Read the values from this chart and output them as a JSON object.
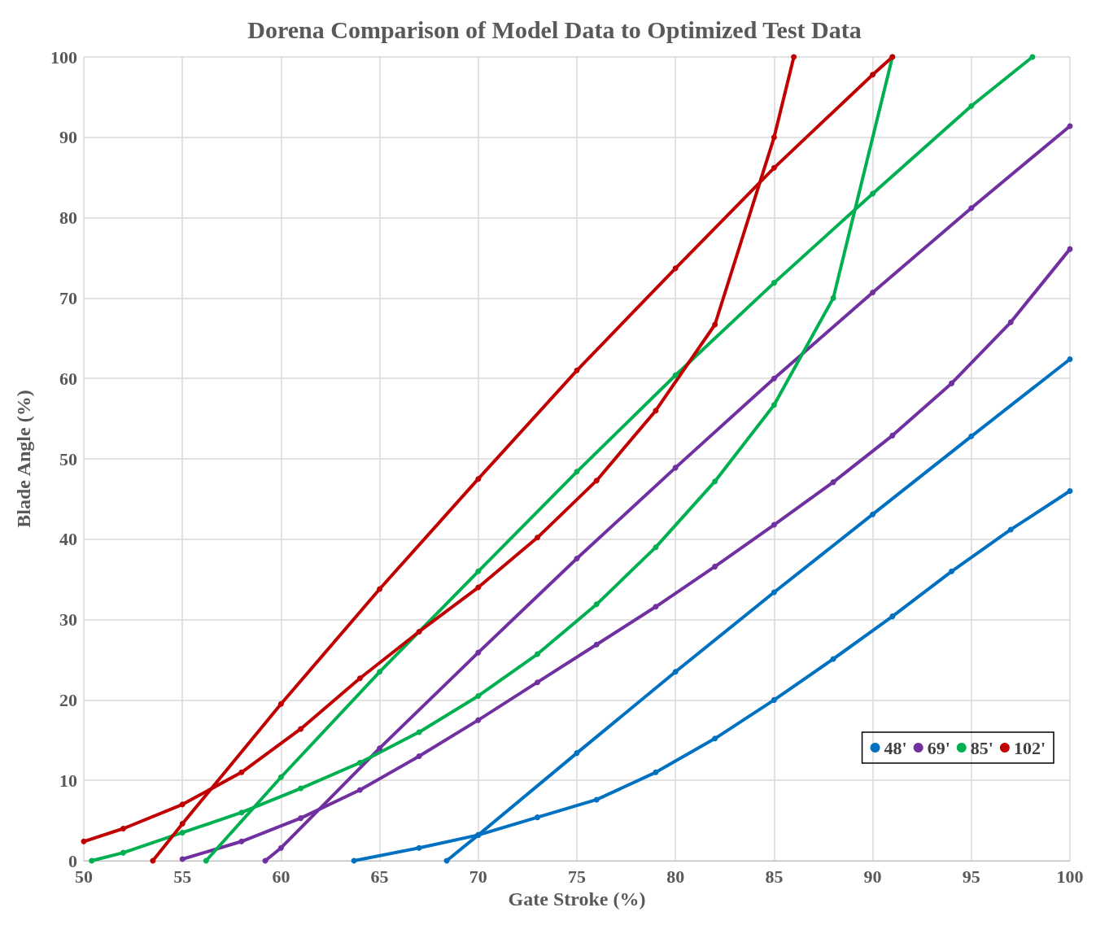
{
  "chart_data": {
    "type": "line",
    "title": "Dorena Comparison of Model Data to Optimized Test Data",
    "xlabel": "Gate Stroke (%)",
    "ylabel": "Blade Angle (%)",
    "xlim": [
      50,
      100
    ],
    "xticks": [
      50,
      55,
      60,
      65,
      70,
      75,
      80,
      85,
      90,
      95,
      100
    ],
    "ylim": [
      0,
      100
    ],
    "yticks": [
      0,
      10,
      20,
      30,
      40,
      50,
      60,
      70,
      80,
      90,
      100
    ],
    "grid": true,
    "legend": "bottom right",
    "marker": "circle",
    "line_style": "solid",
    "series": [
      {
        "name": "48'",
        "color": "#0070c0",
        "x": [
          63.7,
          67,
          70,
          73,
          76,
          79,
          82,
          85,
          88,
          91,
          94,
          97,
          100
        ],
        "values": [
          0,
          1.6,
          3.2,
          5.4,
          7.6,
          11,
          15.2,
          20,
          25.1,
          30.4,
          36,
          41.2,
          46
        ]
      },
      {
        "color": "#0070c0",
        "x": [
          68.4,
          70,
          75,
          80,
          85,
          90,
          95,
          100
        ],
        "values": [
          0,
          3.2,
          13.4,
          23.5,
          33.4,
          43.1,
          52.8,
          62.4
        ]
      },
      {
        "name": "69'",
        "color": "#7030a0",
        "x": [
          55,
          58,
          61,
          64,
          67,
          70,
          73,
          76,
          79,
          82,
          85,
          88,
          91,
          94,
          97,
          100
        ],
        "values": [
          0.2,
          2.4,
          5.3,
          8.8,
          13,
          17.5,
          22.2,
          26.9,
          31.6,
          36.6,
          41.8,
          47.1,
          52.9,
          59.4,
          67,
          76.1
        ]
      },
      {
        "color": "#7030a0",
        "x": [
          59.2,
          60,
          65,
          70,
          75,
          80,
          85,
          90,
          95,
          100
        ],
        "values": [
          0,
          1.6,
          14,
          25.9,
          37.6,
          48.9,
          60,
          70.7,
          81.2,
          91.4
        ]
      },
      {
        "name": "85'",
        "color": "#00b050",
        "x": [
          50.4,
          52,
          55,
          58,
          61,
          64,
          67,
          70,
          73,
          76,
          79,
          82,
          85,
          88,
          91
        ],
        "values": [
          0,
          1,
          3.5,
          6,
          9,
          12.2,
          16,
          20.5,
          25.7,
          31.9,
          39,
          47.2,
          56.7,
          70,
          100
        ]
      },
      {
        "color": "#00b050",
        "x": [
          56.2,
          60,
          65,
          70,
          75,
          80,
          85,
          90,
          95,
          98.1
        ],
        "values": [
          0,
          10.4,
          23.5,
          36,
          48.4,
          60.4,
          71.9,
          83,
          93.9,
          100
        ]
      },
      {
        "name": "102'",
        "color": "#c00000",
        "x": [
          50,
          52,
          55,
          58,
          61,
          64,
          67,
          70,
          73,
          76,
          79,
          82,
          85,
          86
        ],
        "values": [
          2.4,
          4,
          7,
          11,
          16.4,
          22.7,
          28.5,
          34,
          40.2,
          47.3,
          56,
          66.7,
          90,
          100
        ]
      },
      {
        "color": "#c00000",
        "x": [
          53.5,
          55,
          60,
          65,
          70,
          75,
          80,
          85,
          90,
          91
        ],
        "values": [
          0,
          4.6,
          19.5,
          33.8,
          47.5,
          61,
          73.7,
          86.2,
          97.8,
          100
        ]
      }
    ]
  }
}
